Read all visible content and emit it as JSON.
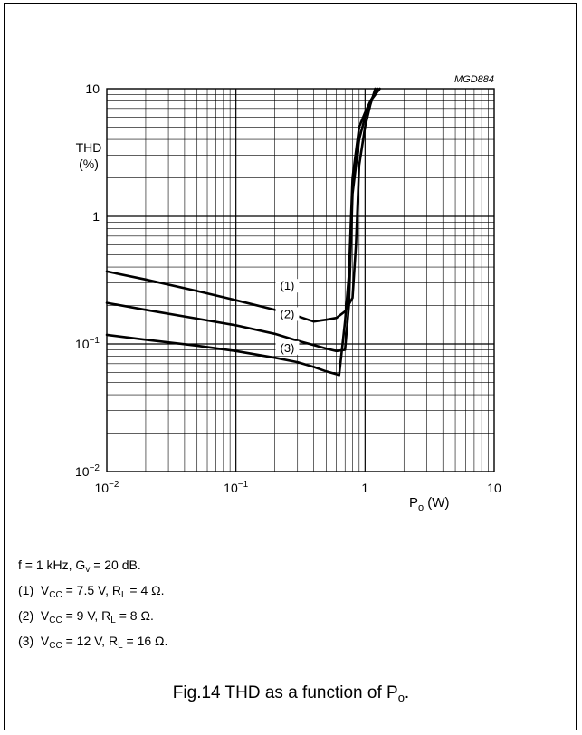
{
  "figure_code": "MGD884",
  "caption": {
    "prefix": "Fig.14  THD as a function of P",
    "sub": "o",
    "suffix": "."
  },
  "conditions": {
    "line1": "f = 1 kHz, G",
    "line1_sub": "v",
    "line1_rest": " = 20 dB."
  },
  "legend": [
    {
      "num": "(1)",
      "v": "V",
      "v_sub": "CC",
      "v_val": " = 7.5 V, R",
      "r_sub": "L",
      "r_val": " = 4 Ω."
    },
    {
      "num": "(2)",
      "v": "V",
      "v_sub": "CC",
      "v_val": " = 9 V, R",
      "r_sub": "L",
      "r_val": " = 8 Ω."
    },
    {
      "num": "(3)",
      "v": "V",
      "v_sub": "CC",
      "v_val": " = 12 V, R",
      "r_sub": "L",
      "r_val": " = 16 Ω."
    }
  ],
  "chart_data": {
    "type": "line",
    "x_scale": "log",
    "y_scale": "log",
    "xlim": [
      0.01,
      10
    ],
    "ylim": [
      0.01,
      10
    ],
    "grid": true,
    "ylabel_line1": "THD",
    "ylabel_line2": "(%)",
    "xlabel_main": "P",
    "xlabel_sub": "o",
    "xlabel_unit": " (W)",
    "x_ticks": [
      {
        "value": 0.01,
        "base": "10",
        "exp": "−2"
      },
      {
        "value": 0.1,
        "base": "10",
        "exp": "−1"
      },
      {
        "value": 1,
        "base": "1",
        "exp": ""
      },
      {
        "value": 10,
        "base": "10",
        "exp": ""
      }
    ],
    "y_ticks": [
      {
        "value": 10,
        "base": "10",
        "exp": ""
      },
      {
        "value": 1,
        "base": "1",
        "exp": ""
      },
      {
        "value": 0.1,
        "base": "10",
        "exp": "−1"
      },
      {
        "value": 0.01,
        "base": "10",
        "exp": "−2"
      }
    ],
    "series": [
      {
        "name": "(1)",
        "label_at": [
          0.25,
          0.27
        ],
        "points": [
          [
            0.01,
            0.37
          ],
          [
            0.02,
            0.32
          ],
          [
            0.05,
            0.26
          ],
          [
            0.1,
            0.22
          ],
          [
            0.2,
            0.185
          ],
          [
            0.3,
            0.165
          ],
          [
            0.4,
            0.15
          ],
          [
            0.5,
            0.155
          ],
          [
            0.6,
            0.16
          ],
          [
            0.7,
            0.18
          ],
          [
            0.8,
            0.23
          ],
          [
            0.85,
            0.6
          ],
          [
            0.9,
            2.5
          ],
          [
            1.0,
            5.0
          ],
          [
            1.1,
            7.5
          ],
          [
            1.2,
            10.0
          ]
        ]
      },
      {
        "name": "(2)",
        "label_at": [
          0.25,
          0.162
        ],
        "points": [
          [
            0.01,
            0.21
          ],
          [
            0.02,
            0.185
          ],
          [
            0.05,
            0.158
          ],
          [
            0.1,
            0.14
          ],
          [
            0.2,
            0.12
          ],
          [
            0.3,
            0.106
          ],
          [
            0.4,
            0.098
          ],
          [
            0.5,
            0.092
          ],
          [
            0.6,
            0.088
          ],
          [
            0.7,
            0.09
          ],
          [
            0.75,
            0.2
          ],
          [
            0.8,
            1.5
          ],
          [
            0.9,
            4.0
          ],
          [
            1.0,
            6.0
          ],
          [
            1.1,
            8.0
          ],
          [
            1.25,
            10.0
          ]
        ]
      },
      {
        "name": "(3)",
        "label_at": [
          0.25,
          0.088
        ],
        "points": [
          [
            0.01,
            0.118
          ],
          [
            0.02,
            0.108
          ],
          [
            0.05,
            0.097
          ],
          [
            0.1,
            0.088
          ],
          [
            0.2,
            0.078
          ],
          [
            0.3,
            0.072
          ],
          [
            0.4,
            0.066
          ],
          [
            0.5,
            0.061
          ],
          [
            0.6,
            0.058
          ],
          [
            0.63,
            0.057
          ],
          [
            0.7,
            0.15
          ],
          [
            0.75,
            0.35
          ],
          [
            0.8,
            2.0
          ],
          [
            0.9,
            5.0
          ],
          [
            1.0,
            6.5
          ],
          [
            1.1,
            8.0
          ],
          [
            1.3,
            10.0
          ]
        ]
      }
    ]
  }
}
